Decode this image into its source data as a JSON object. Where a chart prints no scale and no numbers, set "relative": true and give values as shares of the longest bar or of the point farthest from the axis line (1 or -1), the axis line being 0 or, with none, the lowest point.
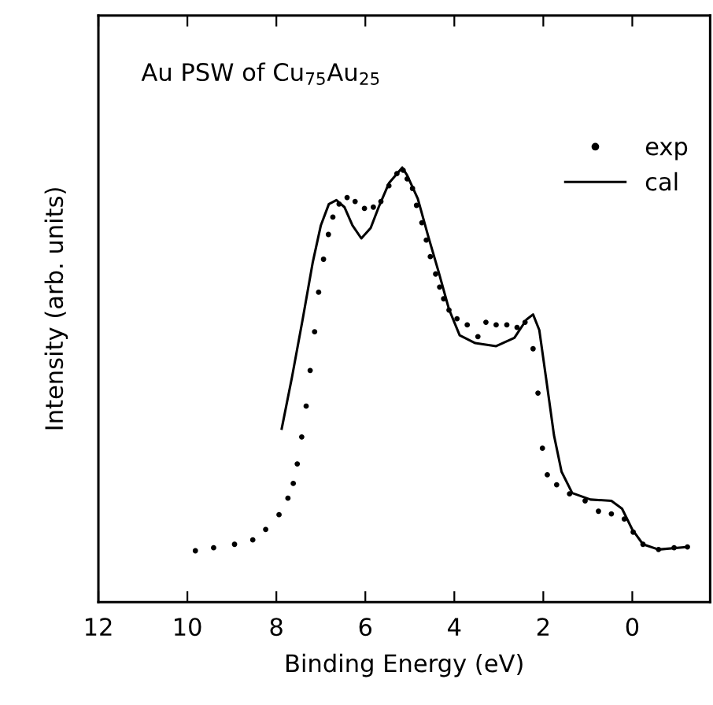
{
  "chart_data": {
    "type": "scatter",
    "xlabel": "Binding Energy (eV)",
    "ylabel": "Intensity (arb. units)",
    "annotations": [
      "Au PSW of Cu$_{75}$Au$_{25}$"
    ],
    "relative": true,
    "xlim": [
      12,
      -1.75
    ],
    "xticks": [
      12,
      10,
      8,
      6,
      4,
      2,
      0
    ],
    "tick_labels": "x",
    "grid": false,
    "legend": "top right",
    "series": [
      {
        "name": "exp",
        "marker": "circle",
        "color": "#000000",
        "x": [
          9.82,
          9.41,
          8.94,
          8.53,
          8.24,
          7.94,
          7.74,
          7.62,
          7.53,
          7.43,
          7.33,
          7.24,
          7.14,
          7.05,
          6.94,
          6.83,
          6.73,
          6.59,
          6.41,
          6.23,
          6.02,
          5.82,
          5.65,
          5.47,
          5.29,
          5.15,
          5.06,
          4.94,
          4.85,
          4.73,
          4.63,
          4.54,
          4.42,
          4.33,
          4.24,
          4.12,
          3.94,
          3.71,
          3.47,
          3.29,
          3.06,
          2.82,
          2.59,
          2.41,
          2.23,
          2.12,
          2.02,
          1.91,
          1.7,
          1.41,
          1.06,
          0.76,
          0.47,
          0.18,
          -0.02,
          -0.24,
          -0.59,
          -0.94,
          -1.24
        ],
        "values": [
          0.118,
          0.125,
          0.133,
          0.143,
          0.167,
          0.201,
          0.239,
          0.273,
          0.318,
          0.38,
          0.451,
          0.533,
          0.622,
          0.713,
          0.789,
          0.846,
          0.886,
          0.916,
          0.931,
          0.922,
          0.906,
          0.909,
          0.922,
          0.958,
          0.986,
          0.994,
          0.974,
          0.952,
          0.913,
          0.873,
          0.833,
          0.795,
          0.755,
          0.725,
          0.698,
          0.672,
          0.652,
          0.638,
          0.611,
          0.644,
          0.638,
          0.638,
          0.632,
          0.644,
          0.583,
          0.481,
          0.354,
          0.293,
          0.27,
          0.249,
          0.233,
          0.209,
          0.203,
          0.191,
          0.161,
          0.133,
          0.121,
          0.125,
          0.127
        ]
      },
      {
        "name": "cal",
        "type": "line",
        "marker": "none",
        "line_style": "solid",
        "color": "#000000",
        "x": [
          7.88,
          7.65,
          7.41,
          7.18,
          7.0,
          6.82,
          6.65,
          6.47,
          6.29,
          6.09,
          5.88,
          5.7,
          5.47,
          5.17,
          5.06,
          4.82,
          4.59,
          4.35,
          4.12,
          3.88,
          3.53,
          3.06,
          2.65,
          2.38,
          2.23,
          2.09,
          1.94,
          1.76,
          1.59,
          1.35,
          0.94,
          0.47,
          0.23,
          0.0,
          -0.24,
          -0.59,
          -1.24
        ],
        "values": [
          0.399,
          0.517,
          0.65,
          0.783,
          0.867,
          0.916,
          0.925,
          0.909,
          0.867,
          0.837,
          0.861,
          0.909,
          0.964,
          1.0,
          0.982,
          0.928,
          0.843,
          0.759,
          0.674,
          0.614,
          0.596,
          0.589,
          0.608,
          0.65,
          0.662,
          0.626,
          0.517,
          0.384,
          0.3,
          0.251,
          0.236,
          0.233,
          0.215,
          0.167,
          0.133,
          0.121,
          0.127
        ]
      }
    ]
  }
}
